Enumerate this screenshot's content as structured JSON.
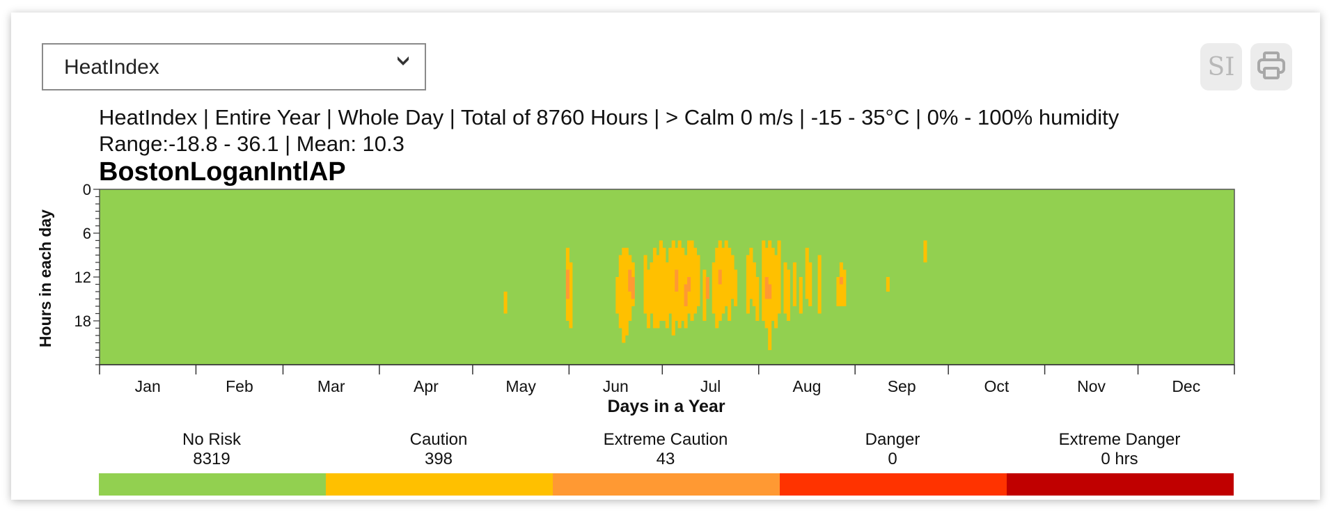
{
  "metric_select": {
    "value": "HeatIndex"
  },
  "toolbar": {
    "si_label": "SI",
    "print_icon": "printer-icon"
  },
  "summary": {
    "line1": "HeatIndex | Entire Year | Whole Day | Total of 8760 Hours | > Calm 0 m/s | -15 - 35°C | 0% - 100% humidity",
    "line2": "Range:-18.8 - 36.1 | Mean: 10.3"
  },
  "station": "BostonLoganIntlAP",
  "chart_data": {
    "type": "heatmap",
    "xlabel": "Days in a Year",
    "ylabel": "Hours in each day",
    "x_range": [
      1,
      365
    ],
    "y_range": [
      0,
      24
    ],
    "y_ticks": [
      0,
      6,
      12,
      18
    ],
    "months": [
      "Jan",
      "Feb",
      "Mar",
      "Apr",
      "May",
      "Jun",
      "Jul",
      "Aug",
      "Sep",
      "Oct",
      "Nov",
      "Dec"
    ],
    "month_starts": [
      1,
      32,
      60,
      91,
      121,
      152,
      182,
      213,
      244,
      274,
      305,
      335
    ],
    "category_colors": {
      "No Risk": "#92d050",
      "Caution": "#ffc000",
      "Extreme Caution": "#ff9933",
      "Danger": "#ff3300",
      "Extreme Danger": "#c00000"
    },
    "caution_cells": [
      {
        "day": 131,
        "h0": 14,
        "h1": 17
      },
      {
        "day": 151,
        "h0": 8,
        "h1": 18
      },
      {
        "day": 152,
        "h0": 10,
        "h1": 19
      },
      {
        "day": 167,
        "h0": 12,
        "h1": 17
      },
      {
        "day": 168,
        "h0": 9,
        "h1": 19
      },
      {
        "day": 169,
        "h0": 8,
        "h1": 21
      },
      {
        "day": 170,
        "h0": 8,
        "h1": 20
      },
      {
        "day": 171,
        "h0": 9,
        "h1": 18
      },
      {
        "day": 172,
        "h0": 10,
        "h1": 16
      },
      {
        "day": 176,
        "h0": 9,
        "h1": 17
      },
      {
        "day": 177,
        "h0": 11,
        "h1": 19
      },
      {
        "day": 178,
        "h0": 10,
        "h1": 17
      },
      {
        "day": 179,
        "h0": 8,
        "h1": 19
      },
      {
        "day": 180,
        "h0": 9,
        "h1": 19
      },
      {
        "day": 181,
        "h0": 7,
        "h1": 18
      },
      {
        "day": 182,
        "h0": 8,
        "h1": 18
      },
      {
        "day": 183,
        "h0": 10,
        "h1": 19
      },
      {
        "day": 184,
        "h0": 8,
        "h1": 17
      },
      {
        "day": 185,
        "h0": 7,
        "h1": 20
      },
      {
        "day": 186,
        "h0": 8,
        "h1": 18
      },
      {
        "day": 187,
        "h0": 7,
        "h1": 19
      },
      {
        "day": 188,
        "h0": 8,
        "h1": 18
      },
      {
        "day": 189,
        "h0": 9,
        "h1": 19
      },
      {
        "day": 190,
        "h0": 7,
        "h1": 17
      },
      {
        "day": 191,
        "h0": 7,
        "h1": 18
      },
      {
        "day": 192,
        "h0": 8,
        "h1": 17
      },
      {
        "day": 193,
        "h0": 9,
        "h1": 16
      },
      {
        "day": 195,
        "h0": 11,
        "h1": 18
      },
      {
        "day": 198,
        "h0": 10,
        "h1": 17
      },
      {
        "day": 199,
        "h0": 8,
        "h1": 19
      },
      {
        "day": 200,
        "h0": 7,
        "h1": 18
      },
      {
        "day": 201,
        "h0": 8,
        "h1": 17
      },
      {
        "day": 202,
        "h0": 7,
        "h1": 16
      },
      {
        "day": 203,
        "h0": 8,
        "h1": 18
      },
      {
        "day": 204,
        "h0": 9,
        "h1": 15
      },
      {
        "day": 205,
        "h0": 11,
        "h1": 16
      },
      {
        "day": 209,
        "h0": 9,
        "h1": 17
      },
      {
        "day": 210,
        "h0": 8,
        "h1": 15
      },
      {
        "day": 211,
        "h0": 10,
        "h1": 16
      },
      {
        "day": 212,
        "h0": 12,
        "h1": 18
      },
      {
        "day": 214,
        "h0": 7,
        "h1": 18
      },
      {
        "day": 215,
        "h0": 8,
        "h1": 19
      },
      {
        "day": 216,
        "h0": 7,
        "h1": 22
      },
      {
        "day": 217,
        "h0": 8,
        "h1": 18
      },
      {
        "day": 218,
        "h0": 9,
        "h1": 19
      },
      {
        "day": 219,
        "h0": 7,
        "h1": 17
      },
      {
        "day": 221,
        "h0": 10,
        "h1": 17
      },
      {
        "day": 222,
        "h0": 11,
        "h1": 18
      },
      {
        "day": 224,
        "h0": 10,
        "h1": 16
      },
      {
        "day": 226,
        "h0": 12,
        "h1": 17
      },
      {
        "day": 228,
        "h0": 8,
        "h1": 15
      },
      {
        "day": 229,
        "h0": 10,
        "h1": 16
      },
      {
        "day": 232,
        "h0": 9,
        "h1": 17
      },
      {
        "day": 238,
        "h0": 12,
        "h1": 16
      },
      {
        "day": 239,
        "h0": 10,
        "h1": 16
      },
      {
        "day": 240,
        "h0": 11,
        "h1": 16
      },
      {
        "day": 254,
        "h0": 12,
        "h1": 14
      },
      {
        "day": 266,
        "h0": 7,
        "h1": 10
      }
    ],
    "extreme_caution_cells": [
      {
        "day": 151,
        "h0": 11,
        "h1": 15
      },
      {
        "day": 171,
        "h0": 11,
        "h1": 14
      },
      {
        "day": 172,
        "h0": 12,
        "h1": 15
      },
      {
        "day": 186,
        "h0": 11,
        "h1": 14
      },
      {
        "day": 189,
        "h0": 13,
        "h1": 16
      },
      {
        "day": 190,
        "h0": 12,
        "h1": 14
      },
      {
        "day": 196,
        "h0": 12,
        "h1": 15
      },
      {
        "day": 200,
        "h0": 11,
        "h1": 13
      },
      {
        "day": 215,
        "h0": 12,
        "h1": 15
      },
      {
        "day": 216,
        "h0": 13,
        "h1": 15
      },
      {
        "day": 239,
        "h0": 12,
        "h1": 13
      }
    ]
  },
  "legend": [
    {
      "label": "No Risk",
      "value": "8319",
      "color": "#92d050"
    },
    {
      "label": "Caution",
      "value": "398",
      "color": "#ffc000"
    },
    {
      "label": "Extreme Caution",
      "value": "43",
      "color": "#ff9933"
    },
    {
      "label": "Danger",
      "value": "0",
      "color": "#ff3300"
    },
    {
      "label": "Extreme Danger",
      "value": "0 hrs",
      "color": "#c00000"
    }
  ]
}
